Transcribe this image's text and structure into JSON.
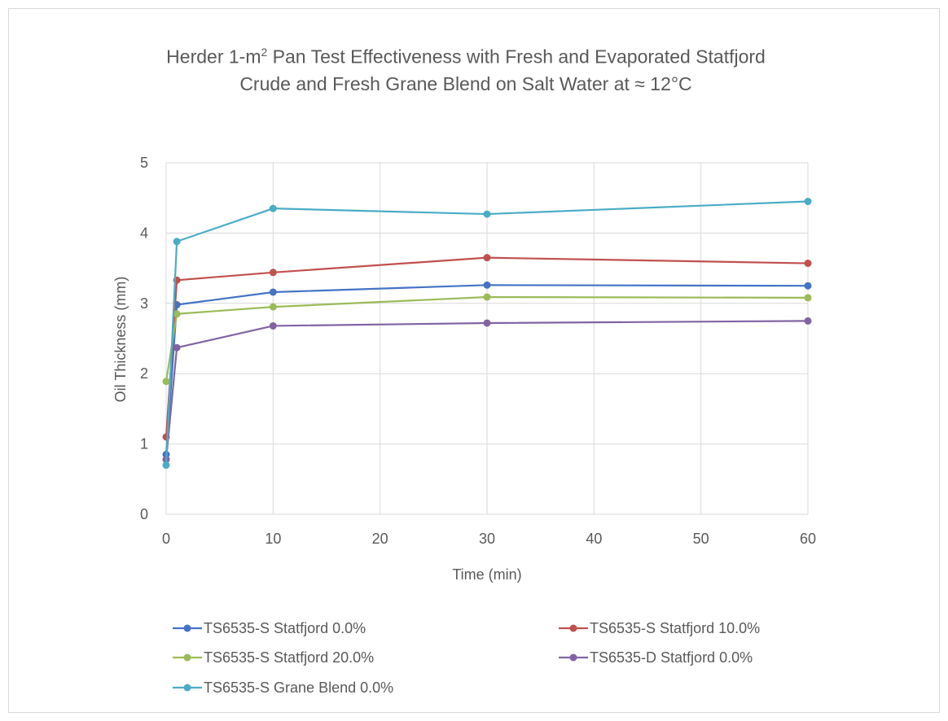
{
  "chart_data": {
    "type": "line",
    "title_part1": "Herder 1-m",
    "title_sup": "2",
    "title_part2": " Pan Test Effectiveness with Fresh and Evaporated Statfjord",
    "title_line2": "Crude  and Fresh Grane Blend on Salt Water at ≈ 12°C",
    "xlabel": "Time (min)",
    "ylabel": "Oil Thickness (mm)",
    "xlim": [
      0,
      60
    ],
    "ylim": [
      0,
      5
    ],
    "xticks": [
      0,
      10,
      20,
      30,
      40,
      50,
      60
    ],
    "yticks": [
      0,
      1,
      2,
      3,
      4,
      5
    ],
    "grid": "vertical-and-horizontal",
    "legend_position": "bottom",
    "series": [
      {
        "name": "TS6535-S Statfjord 0.0%",
        "color": "#4472C4",
        "x": [
          0,
          1,
          10,
          30,
          60
        ],
        "y": [
          0.85,
          2.98,
          3.16,
          3.26,
          3.25
        ]
      },
      {
        "name": "TS6535-S Statfjord 10.0%",
        "color": "#C0504D",
        "x": [
          0,
          1,
          10,
          30,
          60
        ],
        "y": [
          1.1,
          3.33,
          3.44,
          3.65,
          3.57
        ]
      },
      {
        "name": "TS6535-S Statfjord 20.0%",
        "color": "#9BBB59",
        "x": [
          0,
          1,
          10,
          30,
          60
        ],
        "y": [
          1.89,
          2.85,
          2.95,
          3.09,
          3.08
        ]
      },
      {
        "name": "TS6535-D Statfjord 0.0%",
        "color": "#8064A2",
        "x": [
          0,
          1,
          10,
          30,
          60
        ],
        "y": [
          0.78,
          2.37,
          2.68,
          2.72,
          2.75
        ]
      },
      {
        "name": "TS6535-S Grane Blend 0.0%",
        "color": "#4BACC6",
        "x": [
          0,
          1,
          10,
          30,
          60
        ],
        "y": [
          0.7,
          3.88,
          4.35,
          4.27,
          4.45
        ]
      }
    ]
  }
}
